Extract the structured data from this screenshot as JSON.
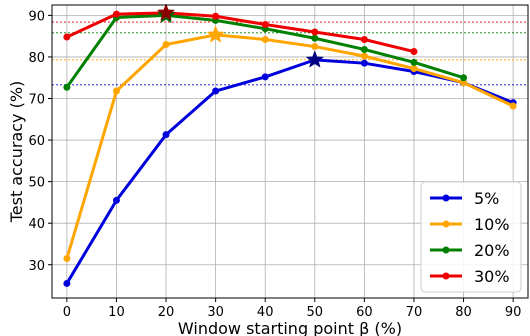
{
  "chart_data": {
    "type": "line",
    "title": "",
    "xlabel": "Window starting point β (%)",
    "ylabel": "Test accuracy (%)",
    "x": [
      0,
      10,
      20,
      30,
      40,
      50,
      60,
      70,
      80,
      90
    ],
    "xticks": [
      0,
      10,
      20,
      30,
      40,
      50,
      60,
      70,
      80,
      90
    ],
    "yticks": [
      30,
      40,
      50,
      60,
      70,
      80,
      90
    ],
    "xlim": [
      -3,
      93
    ],
    "ylim": [
      22,
      92.5
    ],
    "grid": true,
    "legend_position": "bottom-right",
    "series": [
      {
        "name": "5%",
        "color": "#0000dd",
        "x": [
          0,
          10,
          20,
          30,
          40,
          50,
          60,
          70,
          80,
          90
        ],
        "values": [
          25.5,
          45.5,
          61.3,
          71.8,
          75.2,
          79.3,
          78.5,
          76.5,
          73.8,
          69.0
        ],
        "best": {
          "x": 50,
          "y": 79.3
        },
        "hline": 73.3
      },
      {
        "name": "10%",
        "color": "#ffa500",
        "x": [
          0,
          10,
          20,
          30,
          40,
          50,
          60,
          70,
          80,
          90
        ],
        "values": [
          31.5,
          71.8,
          83.0,
          85.3,
          84.2,
          82.5,
          80.2,
          77.2,
          73.8,
          68.2
        ],
        "best": {
          "x": 30,
          "y": 85.3
        },
        "hline": 79.3
      },
      {
        "name": "20%",
        "color": "#008000",
        "x": [
          0,
          10,
          20,
          30,
          40,
          50,
          60,
          70,
          80
        ],
        "values": [
          72.7,
          89.5,
          90.0,
          88.8,
          86.8,
          84.5,
          81.8,
          78.7,
          75.0
        ],
        "best": {
          "x": 20,
          "y": 90.0
        },
        "hline": 85.8
      },
      {
        "name": "30%",
        "color": "#ee0000",
        "x": [
          0,
          10,
          20,
          30,
          40,
          50,
          60,
          70
        ],
        "values": [
          84.8,
          90.3,
          90.6,
          89.8,
          87.8,
          86.0,
          84.2,
          81.3
        ],
        "best": {
          "x": 20,
          "y": 90.6
        },
        "hline": 88.4
      }
    ],
    "best_marker_colors": {
      "5%": "#000080",
      "10%": "#ffa500",
      "20%": "#006400",
      "30%": "#8b0000"
    }
  }
}
